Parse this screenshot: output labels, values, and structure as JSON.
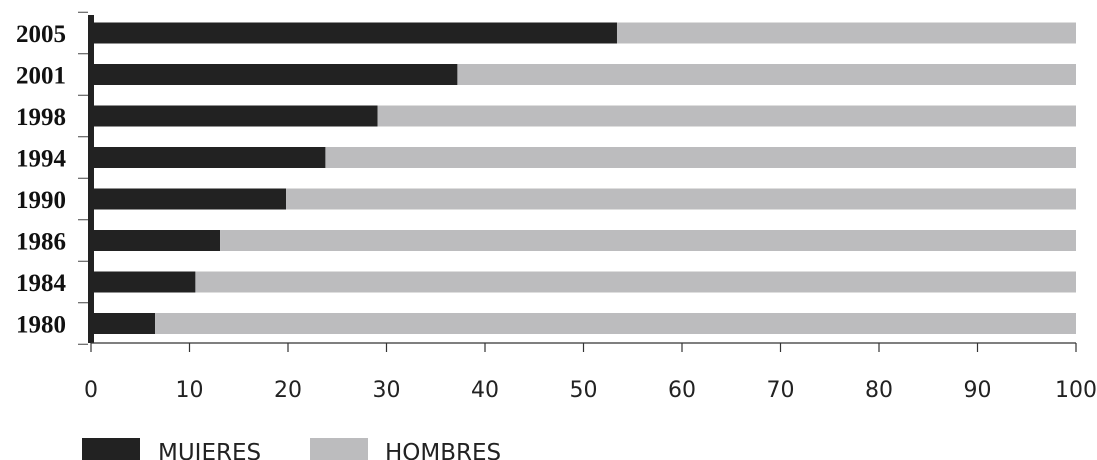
{
  "chart_data": {
    "type": "bar",
    "orientation": "horizontal",
    "stacked": true,
    "categories": [
      "2005",
      "2001",
      "1998",
      "1994",
      "1990",
      "1986",
      "1984",
      "1980"
    ],
    "series": [
      {
        "name": "MUJERES",
        "color": "#222222",
        "values": [
          53.4,
          37.2,
          29.1,
          23.8,
          19.8,
          13.1,
          10.6,
          6.5
        ]
      },
      {
        "name": "HOMBRES",
        "color": "#bcbcbe",
        "values": [
          46.6,
          62.8,
          70.9,
          76.2,
          80.2,
          86.9,
          89.4,
          93.5
        ]
      }
    ],
    "xlim": [
      0,
      100
    ],
    "xticks": [
      "0",
      "10",
      "20",
      "30",
      "40",
      "50",
      "60",
      "70",
      "80",
      "90",
      "100"
    ],
    "grid": false,
    "legend_position": "bottom-left"
  }
}
